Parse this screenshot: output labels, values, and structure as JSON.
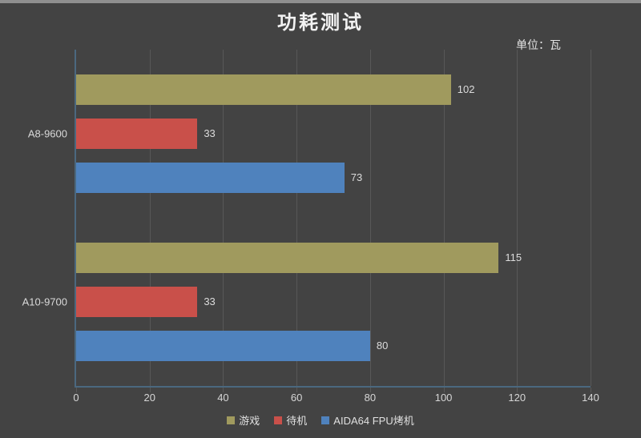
{
  "title": "功耗测试",
  "unit_label": "单位：瓦",
  "colors": {
    "background": "#434343",
    "top_strip": "#8f8f8f",
    "axis": "#4b687f",
    "gridline": "#585858",
    "title_text": "#f2f2f2",
    "label_text": "#d9d9d9"
  },
  "chart_data": {
    "type": "bar",
    "orientation": "horizontal",
    "title": "功耗测试",
    "unit": "单位：瓦",
    "categories": [
      "A8-9600",
      "A10-9700"
    ],
    "series": [
      {
        "name": "游戏",
        "color": "#a09a5e",
        "values": [
          102,
          115
        ]
      },
      {
        "name": "待机",
        "color": "#c9504a",
        "values": [
          33,
          33
        ]
      },
      {
        "name": "AIDA64 FPU烤机",
        "color": "#4f82bd",
        "values": [
          73,
          80
        ]
      }
    ],
    "xlim": [
      0,
      140
    ],
    "xticks": [
      0,
      20,
      40,
      60,
      80,
      100,
      120,
      140
    ],
    "grid": true,
    "legend_position": "bottom"
  }
}
